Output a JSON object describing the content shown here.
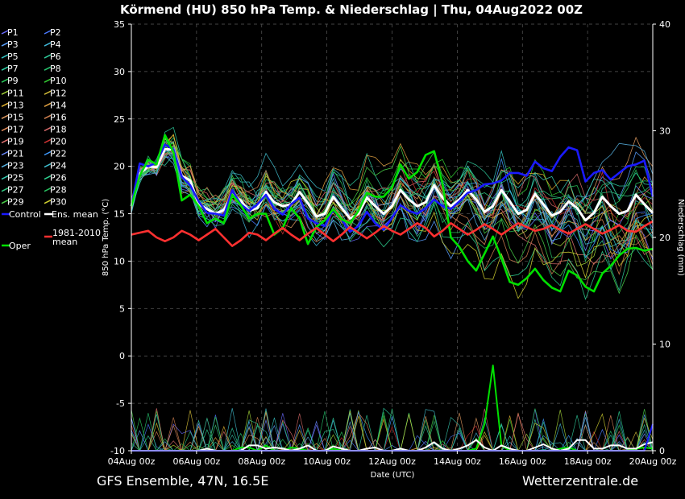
{
  "footer": {
    "left": "GFS Ensemble, 47N, 16.5E",
    "right": "Wetterzentrale.de"
  },
  "chart_data": {
    "type": "line",
    "title": "Körmend  (HU)  850 hPa Temp. & Niederschlag | Thu, 04Aug2022 00Z",
    "xlabel": "Date (UTC)",
    "ylabel": "850 hPa Temp. (°C)",
    "y2label": "Niederschlag (mm)",
    "ylim": [
      -10,
      35
    ],
    "y2lim": [
      0,
      40
    ],
    "yticks": [
      35,
      30,
      25,
      20,
      15,
      10,
      5,
      0,
      -5,
      -10
    ],
    "y2ticks": [
      40,
      30,
      20,
      10,
      0
    ],
    "xticks": [
      "04Aug 00z",
      "06Aug 00z",
      "08Aug 00z",
      "10Aug 00z",
      "12Aug 00z",
      "14Aug 00z",
      "16Aug 00z",
      "18Aug 00z",
      "20Aug 00z"
    ],
    "x_start": "04Aug 00z",
    "x_step_hours": 6,
    "grid": true,
    "legend_position": "left",
    "legend": [
      {
        "name": "P1",
        "color": "#6a6aff"
      },
      {
        "name": "P2",
        "color": "#4a7aff"
      },
      {
        "name": "P3",
        "color": "#5aa0ff"
      },
      {
        "name": "P4",
        "color": "#3fb6d8"
      },
      {
        "name": "P5",
        "color": "#35c2c2"
      },
      {
        "name": "P6",
        "color": "#2ec99a"
      },
      {
        "name": "P7",
        "color": "#2ed2a6"
      },
      {
        "name": "P8",
        "color": "#27c770"
      },
      {
        "name": "P9",
        "color": "#28c95a"
      },
      {
        "name": "P10",
        "color": "#33cc33"
      },
      {
        "name": "P11",
        "color": "#a6d83a"
      },
      {
        "name": "P12",
        "color": "#d9c23a"
      },
      {
        "name": "P13",
        "color": "#e0b030"
      },
      {
        "name": "P14",
        "color": "#e0a040"
      },
      {
        "name": "P15",
        "color": "#e09a60"
      },
      {
        "name": "P16",
        "color": "#d08050"
      },
      {
        "name": "P17",
        "color": "#e08a5a"
      },
      {
        "name": "P18",
        "color": "#d66a6a"
      },
      {
        "name": "P19",
        "color": "#e07070"
      },
      {
        "name": "P20",
        "color": "#cc3333"
      },
      {
        "name": "P21",
        "color": "#6a8aff"
      },
      {
        "name": "P22",
        "color": "#3f9aff"
      },
      {
        "name": "P23",
        "color": "#56b0e0"
      },
      {
        "name": "P24",
        "color": "#3fbccc"
      },
      {
        "name": "P25",
        "color": "#36c9b0"
      },
      {
        "name": "P26",
        "color": "#2ed090"
      },
      {
        "name": "P27",
        "color": "#30c880"
      },
      {
        "name": "P28",
        "color": "#28c060"
      },
      {
        "name": "P29",
        "color": "#48d048"
      },
      {
        "name": "P30",
        "color": "#d0d030"
      },
      {
        "name": "Control",
        "color": "#1a1aff"
      },
      {
        "name": "Ens. mean",
        "color": "#ffffff"
      },
      {
        "name": "Oper",
        "color": "#00e000"
      },
      {
        "name": "1981-2010 mean",
        "color": "#ff3030"
      }
    ],
    "series": [
      {
        "name": "Ens. mean",
        "color": "#ffffff",
        "values": [
          15.8,
          19.2,
          20.0,
          19.9,
          21.8,
          21.8,
          19.0,
          18.5,
          16.0,
          15.5,
          15.0,
          15.4,
          17.0,
          16.4,
          15.3,
          15.6,
          17.3,
          16.2,
          15.8,
          16.0,
          17.3,
          16.1,
          14.7,
          15.0,
          16.8,
          15.6,
          14.5,
          15.0,
          16.7,
          15.8,
          15.0,
          15.8,
          17.5,
          16.5,
          15.8,
          16.2,
          18.0,
          16.7,
          15.8,
          16.5,
          17.5,
          16.5,
          15.2,
          15.8,
          17.5,
          16.3,
          15.0,
          15.4,
          17.1,
          16.0,
          14.8,
          15.2,
          16.3,
          15.6,
          14.3,
          15.1,
          16.8,
          15.8,
          15.0,
          15.3,
          17.0,
          16.0,
          15.1
        ]
      },
      {
        "name": "Control",
        "color": "#1a1aff",
        "values": [
          15.8,
          20.3,
          20.0,
          20.4,
          22.3,
          21.8,
          18.9,
          18.0,
          16.3,
          15.1,
          15.0,
          14.8,
          17.5,
          16.0,
          15.3,
          16.0,
          17.0,
          15.5,
          14.9,
          16.0,
          16.7,
          14.5,
          14.0,
          13.7,
          15.5,
          14.4,
          13.1,
          13.7,
          15.2,
          14.0,
          13.3,
          14.6,
          15.9,
          15.3,
          15.0,
          15.6,
          16.5,
          15.8,
          15.5,
          16.3,
          17.2,
          17.5,
          18.1,
          18.2,
          18.5,
          19.3,
          19.3,
          19.0,
          20.5,
          19.8,
          19.5,
          21.0,
          22.0,
          21.7,
          18.4,
          19.3,
          19.6,
          18.6,
          19.3,
          20.0,
          20.2,
          20.6,
          16.8
        ]
      },
      {
        "name": "Oper",
        "color": "#00e000",
        "values": [
          15.8,
          19.0,
          20.7,
          20.2,
          23.3,
          21.5,
          16.4,
          17.0,
          15.8,
          14.0,
          14.5,
          14.0,
          17.0,
          15.9,
          14.5,
          15.0,
          15.0,
          12.8,
          13.5,
          15.6,
          14.5,
          11.8,
          13.6,
          14.3,
          15.5,
          14.4,
          14.0,
          15.3,
          17.2,
          16.8,
          16.8,
          17.8,
          20.2,
          18.7,
          19.4,
          21.2,
          21.6,
          18.2,
          12.5,
          11.5,
          10.0,
          9.0,
          10.8,
          12.6,
          10.3,
          7.8,
          7.5,
          8.2,
          9.2,
          8.0,
          7.2,
          6.8,
          9.0,
          8.5,
          7.3,
          6.8,
          8.7,
          9.5,
          10.6,
          11.3,
          11.4,
          11.1,
          11.3
        ]
      },
      {
        "name": "1981-2010 mean",
        "color": "#ff3030",
        "values": [
          12.8,
          13.0,
          13.2,
          12.5,
          12.1,
          12.5,
          13.2,
          12.8,
          12.2,
          12.8,
          13.4,
          12.5,
          11.6,
          12.2,
          13.0,
          12.8,
          12.2,
          12.9,
          13.5,
          12.8,
          12.2,
          12.9,
          13.5,
          12.8,
          12.1,
          12.8,
          13.6,
          13.0,
          12.4,
          13.0,
          13.7,
          13.2,
          12.8,
          13.4,
          14.0,
          13.5,
          12.6,
          13.2,
          14.0,
          13.4,
          12.8,
          13.3,
          13.9,
          13.4,
          12.8,
          13.4,
          14.0,
          13.6,
          13.2,
          13.4,
          13.8,
          13.3,
          12.9,
          13.4,
          13.9,
          13.4,
          12.9,
          13.3,
          13.8,
          13.2,
          13.1,
          13.7,
          14.2
        ]
      },
      {
        "name": "Oper precipitation",
        "axis": "y2",
        "color": "#00e000",
        "values": [
          0,
          0,
          0,
          0,
          0,
          0,
          0,
          0,
          0,
          0,
          0,
          0,
          0,
          0.3,
          0.3,
          0,
          0.5,
          0,
          0,
          0.3,
          0.2,
          0,
          0,
          0,
          0.2,
          0,
          0,
          0,
          0,
          0,
          0,
          0,
          0,
          0,
          0,
          0,
          0,
          0,
          0,
          0,
          0,
          0.2,
          2.5,
          8.0,
          0.5,
          0,
          0,
          0,
          0,
          0,
          0,
          0.2,
          0.3,
          0,
          0,
          0,
          0,
          0,
          0,
          0,
          0.2,
          0.3,
          0.2
        ]
      },
      {
        "name": "Ens. mean precipitation",
        "axis": "y2",
        "color": "#ffffff",
        "values": [
          0,
          0,
          0,
          0,
          0,
          0,
          0,
          0,
          0,
          0.2,
          0,
          0,
          0,
          0,
          0.5,
          0.5,
          0.2,
          0.3,
          0.2,
          0,
          0.2,
          0.5,
          0,
          0,
          0.4,
          0.2,
          0,
          0,
          0.2,
          0.3,
          0,
          0,
          0.2,
          0,
          0,
          0.3,
          0.8,
          0.2,
          0,
          0.2,
          0.5,
          1.0,
          0.3,
          0,
          0.5,
          0.2,
          0,
          0,
          0.3,
          0.6,
          0.2,
          0,
          0.2,
          1.0,
          1.0,
          0.2,
          0.2,
          0.5,
          0.5,
          0.2,
          0.2,
          0.6,
          0.8
        ]
      },
      {
        "name": "Control precipitation",
        "axis": "y2",
        "color": "#1a1aff",
        "values": [
          0,
          0,
          0,
          0,
          0,
          0,
          0,
          0,
          0,
          0,
          0,
          0,
          0,
          0,
          0,
          0,
          0,
          0,
          0,
          0,
          0,
          0,
          0,
          0,
          0,
          0,
          0,
          0,
          0,
          0,
          0,
          0,
          0,
          0,
          0,
          0,
          0,
          0,
          0,
          0,
          0,
          0,
          0,
          0,
          0,
          0,
          0,
          0,
          0,
          0,
          0,
          0,
          0,
          0,
          0,
          0,
          0,
          0,
          0,
          0,
          0,
          0,
          2.5
        ]
      }
    ]
  }
}
